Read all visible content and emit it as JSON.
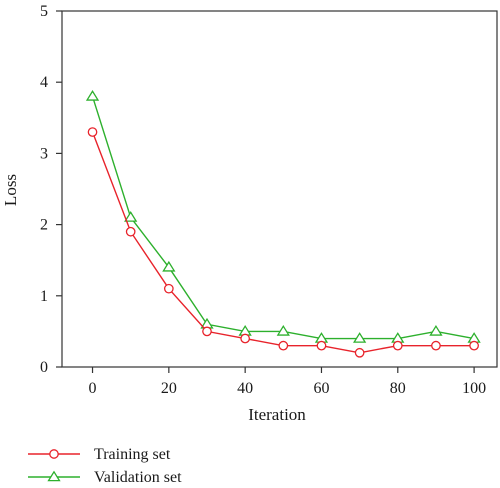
{
  "chart_data": {
    "type": "line",
    "xlabel": "Iteration",
    "ylabel": "Loss",
    "xlim": [
      -8,
      106
    ],
    "ylim": [
      0,
      5
    ],
    "xticks": [
      0,
      20,
      40,
      60,
      80,
      100
    ],
    "yticks": [
      0,
      1,
      2,
      3,
      4,
      5
    ],
    "grid": false,
    "legend_position": "bottom-left, below plot",
    "x": [
      0,
      10,
      20,
      30,
      40,
      50,
      60,
      70,
      80,
      90,
      100
    ],
    "series": [
      {
        "name": "Training set",
        "marker": "circle",
        "color": "#e8232b",
        "values": [
          3.3,
          1.9,
          1.1,
          0.5,
          0.4,
          0.3,
          0.3,
          0.2,
          0.3,
          0.3,
          0.3
        ]
      },
      {
        "name": "Validation set",
        "marker": "triangle",
        "color": "#2db02d",
        "values": [
          3.8,
          2.1,
          1.4,
          0.6,
          0.5,
          0.5,
          0.4,
          0.4,
          0.4,
          0.5,
          0.4
        ]
      }
    ]
  }
}
